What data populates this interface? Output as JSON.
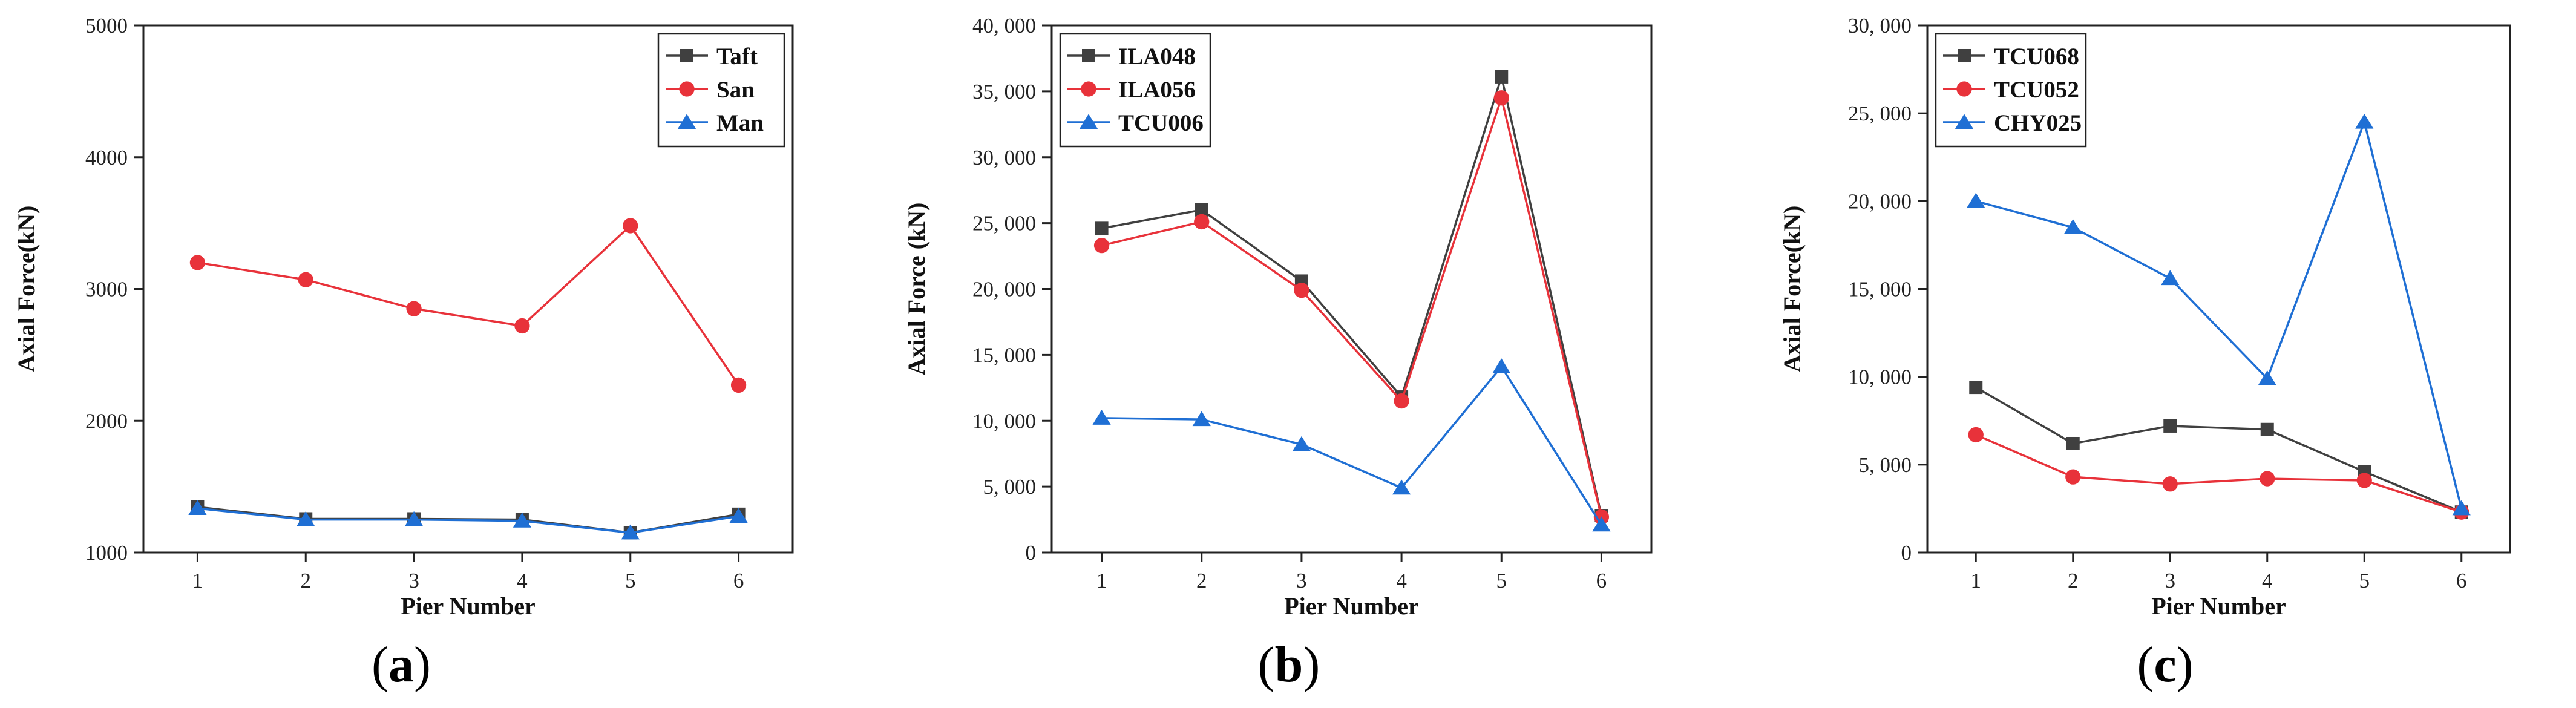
{
  "x_axis_label": "Pier Number",
  "panels": [
    {
      "caption_letter": "a",
      "chart_data": {
        "type": "line",
        "title": "",
        "xlabel": "Pier Number",
        "ylabel": "Axial Force(kN)",
        "x": [
          1,
          2,
          3,
          4,
          5,
          6
        ],
        "xlim": [
          0.5,
          6.5
        ],
        "ylim": [
          1000,
          5000
        ],
        "yticks": [
          1000,
          2000,
          3000,
          4000,
          5000
        ],
        "ytick_labels": [
          "1000",
          "2000",
          "3000",
          "4000",
          "5000"
        ],
        "legend_position": "top-right",
        "series": [
          {
            "name": "Taft",
            "color": "#404040",
            "marker": "square",
            "values": [
              1345,
              1255,
              1255,
              1250,
              1150,
              1290
            ]
          },
          {
            "name": "San",
            "color": "#e8323a",
            "marker": "circle",
            "values": [
              3200,
              3070,
              2850,
              2720,
              3480,
              2270
            ]
          },
          {
            "name": "Man",
            "color": "#1f6fd4",
            "marker": "triangle",
            "values": [
              1335,
              1250,
              1250,
              1240,
              1150,
              1275
            ]
          }
        ]
      }
    },
    {
      "caption_letter": "b",
      "chart_data": {
        "type": "line",
        "title": "",
        "xlabel": "Pier Number",
        "ylabel": "Axial Force (kN)",
        "x": [
          1,
          2,
          3,
          4,
          5,
          6
        ],
        "xlim": [
          0.5,
          6.5
        ],
        "ylim": [
          0,
          40000
        ],
        "yticks": [
          0,
          5000,
          10000,
          15000,
          20000,
          25000,
          30000,
          35000,
          40000
        ],
        "ytick_labels": [
          "0",
          "5, 000",
          "10, 000",
          "15, 000",
          "20, 000",
          "25, 000",
          "30, 000",
          "35, 000",
          "40, 000"
        ],
        "legend_position": "top-left",
        "series": [
          {
            "name": "ILA048",
            "color": "#404040",
            "marker": "square",
            "values": [
              24600,
              26000,
              20600,
              11800,
              36100,
              2800
            ]
          },
          {
            "name": "ILA056",
            "color": "#e8323a",
            "marker": "circle",
            "values": [
              23300,
              25100,
              19900,
              11500,
              34500,
              2700
            ]
          },
          {
            "name": "TCU006",
            "color": "#1f6fd4",
            "marker": "triangle",
            "values": [
              10200,
              10100,
              8200,
              4900,
              14100,
              2100
            ]
          }
        ]
      }
    },
    {
      "caption_letter": "c",
      "chart_data": {
        "type": "line",
        "title": "",
        "xlabel": "Pier Number",
        "ylabel": "Axial Force(kN)",
        "x": [
          1,
          2,
          3,
          4,
          5,
          6
        ],
        "xlim": [
          0.5,
          6.5
        ],
        "ylim": [
          0,
          30000
        ],
        "yticks": [
          0,
          5000,
          10000,
          15000,
          20000,
          25000,
          30000
        ],
        "ytick_labels": [
          "0",
          "5, 000",
          "10, 000",
          "15, 000",
          "20, 000",
          "25, 000",
          "30, 000"
        ],
        "legend_position": "top-left",
        "series": [
          {
            "name": "TCU068",
            "color": "#404040",
            "marker": "square",
            "values": [
              9400,
              6200,
              7200,
              7000,
              4600,
              2300
            ]
          },
          {
            "name": "TCU052",
            "color": "#e8323a",
            "marker": "circle",
            "values": [
              6700,
              4300,
              3900,
              4200,
              4100,
              2300
            ]
          },
          {
            "name": "CHY025",
            "color": "#1f6fd4",
            "marker": "triangle",
            "values": [
              20000,
              18500,
              15600,
              9900,
              24500,
              2500
            ]
          }
        ]
      }
    }
  ]
}
